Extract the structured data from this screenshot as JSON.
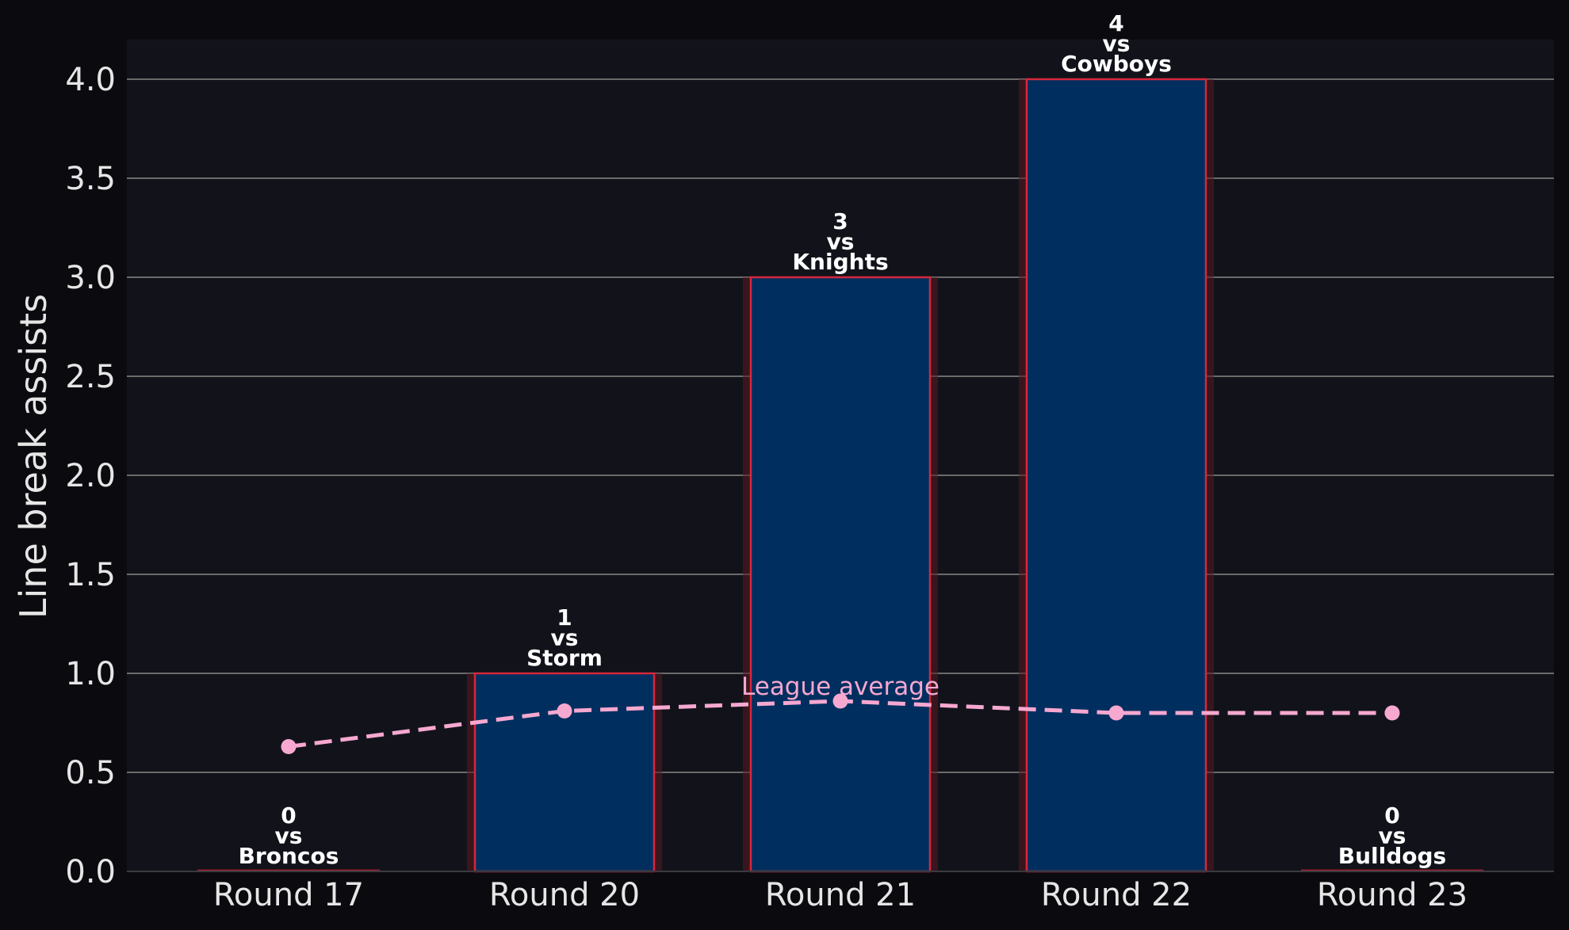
{
  "colors": {
    "figure_background": "#0b0b0f",
    "plot_background": "#12131a",
    "bar_fill": "#002f5f",
    "bar_edge": "#d7263d",
    "bar_glow": "#5a1a22",
    "gridline": "#6b6b6b",
    "league_avg": "#f7a8d0",
    "text": "#e6e6e6"
  },
  "chart_data": {
    "type": "bar",
    "categories": [
      "Round 17",
      "Round 20",
      "Round 21",
      "Round 22",
      "Round 23"
    ],
    "values": [
      0,
      1,
      3,
      4,
      0
    ],
    "opponents": [
      "Broncos",
      "Storm",
      "Knights",
      "Cowboys",
      "Bulldogs"
    ],
    "bar_labels": [
      [
        "0",
        "vs",
        "Broncos"
      ],
      [
        "1",
        "vs",
        "Storm"
      ],
      [
        "3",
        "vs",
        "Knights"
      ],
      [
        "4",
        "vs",
        "Cowboys"
      ],
      [
        "0",
        "vs",
        "Bulldogs"
      ]
    ],
    "ylabel": "Line break assists",
    "xlabel": "",
    "title": "",
    "ylim": [
      0,
      4.2
    ],
    "yticks": [
      0.0,
      0.5,
      1.0,
      1.5,
      2.0,
      2.5,
      3.0,
      3.5,
      4.0
    ],
    "ytick_labels": [
      "0.0",
      "0.5",
      "1.0",
      "1.5",
      "2.0",
      "2.5",
      "3.0",
      "3.5",
      "4.0"
    ],
    "grid": "horizontal",
    "overlay": {
      "type": "line",
      "style": "dashed",
      "name": "League average",
      "values": [
        0.63,
        0.81,
        0.86,
        0.8,
        0.8
      ],
      "label_position": "above point at Round 21"
    }
  }
}
